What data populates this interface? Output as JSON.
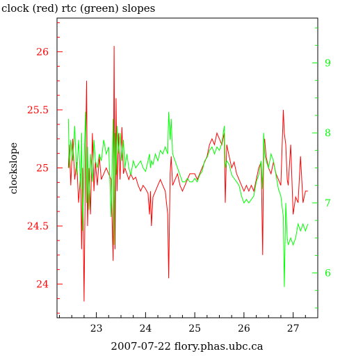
{
  "chart_data": {
    "type": "line",
    "title": "clock (red) rtc (green) slopes",
    "xlabel": "2007-07-22 flory.phas.ubc.ca",
    "ylabel": "clockslope",
    "xlim": [
      22.2,
      27.5
    ],
    "x_ticks": [
      "23",
      "24",
      "25",
      "26",
      "27"
    ],
    "ylim_left": [
      23.71,
      26.29
    ],
    "y_ticks_left": [
      "24",
      "24.5",
      "25",
      "25.5",
      "26"
    ],
    "ylim_right": [
      5.36,
      9.64
    ],
    "y_ticks_right": [
      "6",
      "7",
      "8",
      "9"
    ],
    "grid": false,
    "colors": {
      "clock": "#ff0000",
      "rtc": "#00ff00",
      "axes": "#000000"
    },
    "series": [
      {
        "key": "clock",
        "axis": "left",
        "x": [
          22.43,
          22.45,
          22.48,
          22.52,
          22.56,
          22.6,
          22.64,
          22.68,
          22.7,
          22.72,
          22.75,
          22.78,
          22.8,
          22.82,
          22.85,
          22.88,
          22.92,
          22.95,
          22.98,
          23.02,
          23.06,
          23.1,
          23.15,
          23.2,
          23.25,
          23.3,
          23.34,
          23.36,
          23.38,
          23.4,
          23.42,
          23.45,
          23.48,
          23.52,
          23.55,
          23.58,
          23.62,
          23.66,
          23.7,
          23.75,
          23.8,
          23.85,
          23.9,
          23.95,
          24.0,
          24.05,
          24.08,
          24.1,
          24.12,
          24.15,
          24.2,
          24.25,
          24.3,
          24.35,
          24.4,
          24.45,
          24.47,
          24.5,
          24.52,
          24.55,
          24.6,
          24.65,
          24.7,
          24.75,
          24.8,
          24.85,
          24.9,
          24.95,
          25.0,
          25.05,
          25.1,
          25.15,
          25.2,
          25.25,
          25.3,
          25.35,
          25.4,
          25.45,
          25.5,
          25.55,
          25.6,
          25.62,
          25.65,
          25.7,
          25.75,
          25.8,
          25.85,
          25.9,
          25.95,
          26.0,
          26.05,
          26.1,
          26.15,
          26.2,
          26.25,
          26.3,
          26.35,
          26.38,
          26.4,
          26.42,
          26.45,
          26.5,
          26.55,
          26.6,
          26.65,
          26.7,
          26.75,
          26.8,
          26.82,
          26.85,
          26.88,
          26.9,
          26.95,
          27.0,
          27.05,
          27.1,
          27.15,
          27.2,
          27.25,
          27.3
        ],
        "y": [
          25.0,
          25.2,
          24.85,
          25.25,
          24.9,
          25.05,
          24.7,
          24.95,
          24.3,
          25.0,
          23.85,
          25.1,
          25.75,
          24.5,
          25.0,
          24.6,
          25.3,
          24.8,
          25.05,
          24.85,
          25.1,
          24.9,
          24.95,
          25.0,
          24.95,
          24.9,
          24.2,
          26.05,
          24.3,
          25.6,
          24.8,
          25.3,
          24.9,
          25.35,
          24.95,
          25.0,
          24.95,
          24.9,
          24.95,
          24.9,
          24.92,
          24.85,
          24.8,
          24.85,
          24.82,
          24.78,
          24.6,
          24.8,
          24.5,
          24.75,
          24.8,
          24.85,
          24.9,
          24.85,
          24.8,
          24.6,
          24.05,
          24.95,
          25.1,
          24.85,
          24.9,
          24.95,
          24.85,
          24.8,
          24.85,
          24.9,
          24.95,
          24.95,
          24.95,
          24.9,
          24.95,
          25.0,
          25.05,
          25.1,
          25.2,
          25.25,
          25.2,
          25.3,
          25.25,
          25.2,
          25.3,
          24.7,
          25.2,
          25.1,
          25.0,
          25.05,
          24.95,
          24.9,
          24.85,
          24.8,
          24.85,
          24.8,
          24.85,
          24.8,
          24.9,
          25.0,
          25.05,
          24.25,
          25.2,
          25.25,
          25.1,
          25.0,
          24.95,
          25.05,
          24.95,
          24.9,
          24.85,
          25.5,
          25.3,
          25.2,
          24.9,
          24.85,
          25.2,
          24.6,
          24.75,
          24.7,
          25.1,
          24.7,
          24.8,
          24.8
        ]
      },
      {
        "key": "rtc",
        "axis": "right",
        "x": [
          22.43,
          22.45,
          22.48,
          22.52,
          22.56,
          22.6,
          22.64,
          22.68,
          22.7,
          22.72,
          22.75,
          22.78,
          22.8,
          22.82,
          22.85,
          22.88,
          22.92,
          22.95,
          22.98,
          23.02,
          23.06,
          23.1,
          23.15,
          23.2,
          23.25,
          23.3,
          23.34,
          23.36,
          23.38,
          23.4,
          23.42,
          23.45,
          23.48,
          23.52,
          23.55,
          23.58,
          23.62,
          23.66,
          23.7,
          23.75,
          23.8,
          23.85,
          23.9,
          23.95,
          24.0,
          24.05,
          24.08,
          24.1,
          24.12,
          24.15,
          24.2,
          24.25,
          24.3,
          24.35,
          24.4,
          24.45,
          24.47,
          24.5,
          24.52,
          24.55,
          24.6,
          24.65,
          24.7,
          24.75,
          24.8,
          24.85,
          24.9,
          24.95,
          25.0,
          25.05,
          25.1,
          25.15,
          25.2,
          25.25,
          25.3,
          25.35,
          25.4,
          25.45,
          25.5,
          25.55,
          25.6,
          25.62,
          25.65,
          25.7,
          25.75,
          25.8,
          25.85,
          25.9,
          25.95,
          26.0,
          26.05,
          26.1,
          26.15,
          26.2,
          26.25,
          26.3,
          26.35,
          26.38,
          26.4,
          26.42,
          26.45,
          26.5,
          26.55,
          26.6,
          26.65,
          26.7,
          26.75,
          26.8,
          26.82,
          26.85,
          26.88,
          26.9,
          26.95,
          27.0,
          27.05,
          27.1,
          27.15,
          27.2,
          27.25,
          27.3
        ],
        "y": [
          8.2,
          7.5,
          7.9,
          7.6,
          8.1,
          7.4,
          7.9,
          7.2,
          8.0,
          6.6,
          7.6,
          8.3,
          7.0,
          7.8,
          6.9,
          7.7,
          7.3,
          7.9,
          7.6,
          7.5,
          7.7,
          7.6,
          7.9,
          7.7,
          7.8,
          6.8,
          8.2,
          6.4,
          8.0,
          7.4,
          8.1,
          7.7,
          8.0,
          7.6,
          7.9,
          7.5,
          7.7,
          7.5,
          7.4,
          7.6,
          7.5,
          7.55,
          7.6,
          7.5,
          7.45,
          7.6,
          7.7,
          7.5,
          7.6,
          7.55,
          7.7,
          7.6,
          7.75,
          7.7,
          7.8,
          7.7,
          8.3,
          7.9,
          8.2,
          7.7,
          7.6,
          7.5,
          7.4,
          7.3,
          7.3,
          7.35,
          7.3,
          7.3,
          7.35,
          7.3,
          7.4,
          7.45,
          7.6,
          7.65,
          7.75,
          7.8,
          7.7,
          7.8,
          7.75,
          7.85,
          8.1,
          7.5,
          7.6,
          7.55,
          7.4,
          7.35,
          7.3,
          7.25,
          7.1,
          7.0,
          7.05,
          7.0,
          7.05,
          7.1,
          7.3,
          7.4,
          7.6,
          7.2,
          8.0,
          7.7,
          7.6,
          7.5,
          7.7,
          7.6,
          7.4,
          7.2,
          7.1,
          6.8,
          5.8,
          7.0,
          6.5,
          6.4,
          6.5,
          6.4,
          6.5,
          6.7,
          6.6,
          6.7,
          6.6,
          6.7
        ]
      }
    ]
  }
}
